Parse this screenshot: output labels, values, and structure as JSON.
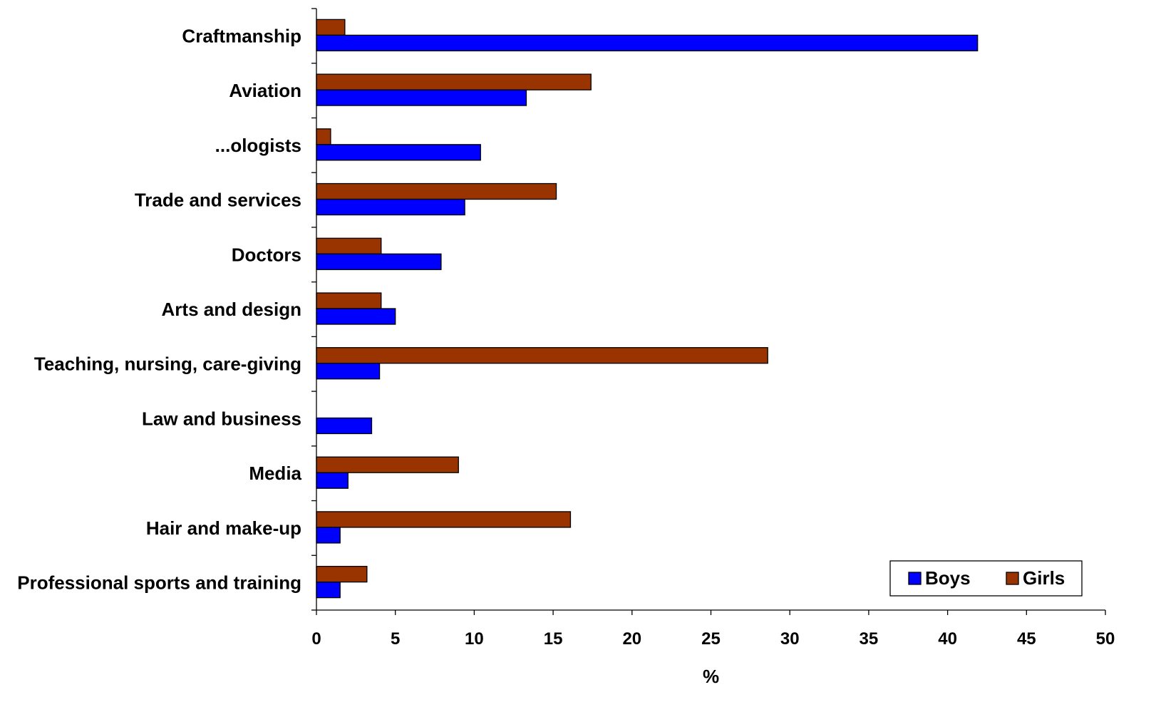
{
  "chart_data": {
    "type": "bar",
    "orientation": "horizontal",
    "categories": [
      "Craftmanship",
      "Aviation",
      "...ologists",
      "Trade and services",
      "Doctors",
      "Arts and design",
      "Teaching, nursing, care-giving",
      "Law and business",
      "Media",
      "Hair and make-up",
      "Professional sports and training"
    ],
    "series": [
      {
        "name": "Boys",
        "color": "#0000FF",
        "values": [
          41.9,
          13.3,
          10.4,
          9.4,
          7.9,
          5.0,
          4.0,
          3.5,
          2.0,
          1.5,
          1.5
        ]
      },
      {
        "name": "Girls",
        "color": "#993300",
        "values": [
          1.8,
          17.4,
          0.9,
          15.2,
          4.1,
          4.1,
          28.6,
          0,
          9.0,
          16.1,
          3.2
        ]
      }
    ],
    "xlabel": "%",
    "ylabel": "",
    "xlim": [
      0,
      50
    ],
    "xticks": [
      0,
      5,
      10,
      15,
      20,
      25,
      30,
      35,
      40,
      45,
      50
    ],
    "grid": false,
    "legend": {
      "position": "bottom-right",
      "entries": [
        "Boys",
        "Girls"
      ]
    }
  }
}
